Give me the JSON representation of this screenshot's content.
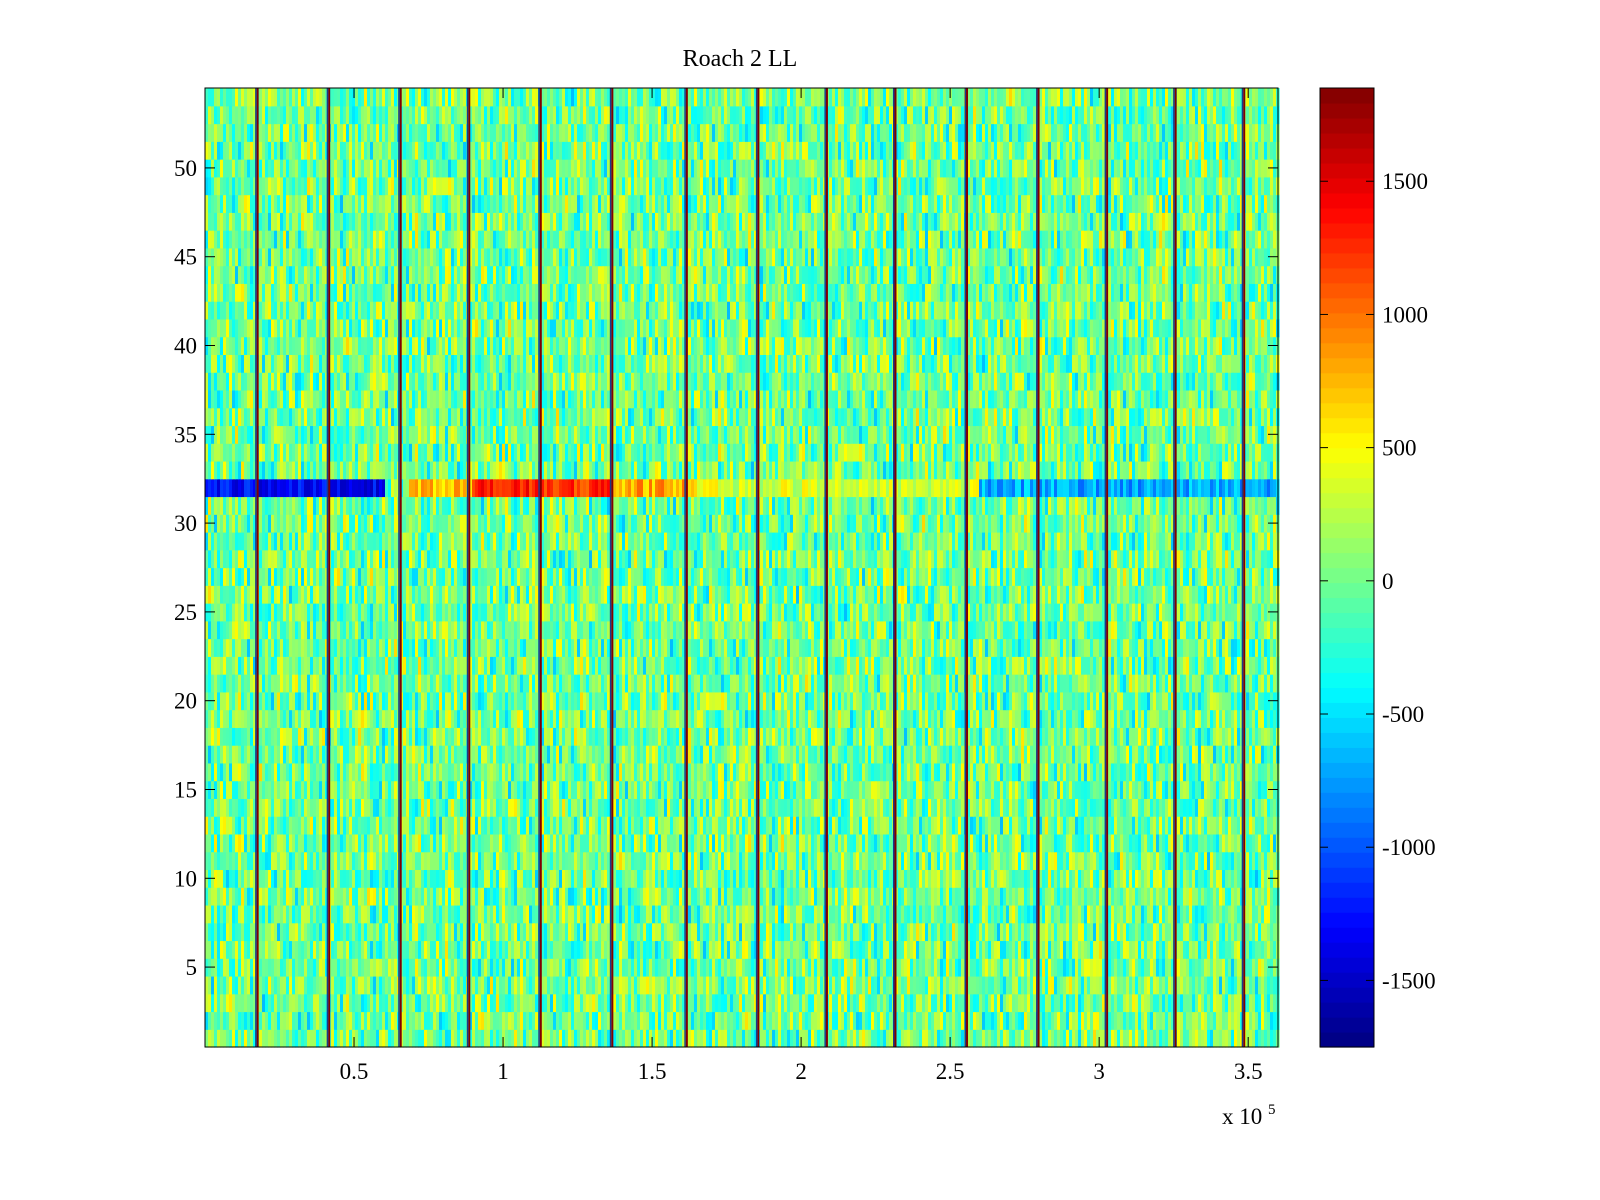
{
  "chart_data": {
    "type": "heatmap",
    "title": "Roach 2 LL",
    "xlabel": "",
    "ylabel": "",
    "x_range": [
      0,
      360000
    ],
    "x_exponent_label": "x 10",
    "x_exponent_power": "5",
    "x_ticks": [
      50000,
      100000,
      150000,
      200000,
      250000,
      300000,
      350000
    ],
    "x_tick_labels": [
      "0.5",
      "1",
      "1.5",
      "2",
      "2.5",
      "3",
      "3.5"
    ],
    "y_range": [
      0.5,
      54.5
    ],
    "y_ticks": [
      5,
      10,
      15,
      20,
      25,
      30,
      35,
      40,
      45,
      50
    ],
    "y_tick_labels": [
      "5",
      "10",
      "15",
      "20",
      "25",
      "30",
      "35",
      "40",
      "45",
      "50"
    ],
    "rows": 54,
    "colormap": "jet",
    "color_range": [
      -1750,
      1850
    ],
    "colorbar_ticks": [
      -1500,
      -1000,
      -500,
      0,
      500,
      1000,
      1500
    ],
    "colorbar_tick_labels": [
      "-1500",
      "-1000",
      "-500",
      "0",
      "500",
      "1000",
      "1500"
    ],
    "grid": false,
    "background_level": 0,
    "vertical_spike_lines_x": [
      18000,
      42000,
      66000,
      89000,
      113000,
      137000,
      162000,
      186000,
      209000,
      232000,
      256000,
      280000,
      303000,
      326000,
      349000
    ],
    "spike_line_value": 1850,
    "anomalous_row": {
      "row": 32,
      "segments": [
        {
          "x_start": 0,
          "x_end": 60000,
          "value": -1300
        },
        {
          "x_start": 68000,
          "x_end": 90000,
          "value": 750
        },
        {
          "x_start": 90000,
          "x_end": 137000,
          "value": 1250
        },
        {
          "x_start": 137000,
          "x_end": 165000,
          "value": 800
        },
        {
          "x_start": 165000,
          "x_end": 260000,
          "value": 350
        },
        {
          "x_start": 260000,
          "x_end": 360000,
          "value": -700
        }
      ]
    }
  },
  "colors": {
    "background": "#ffffff",
    "axis": "#000000"
  }
}
